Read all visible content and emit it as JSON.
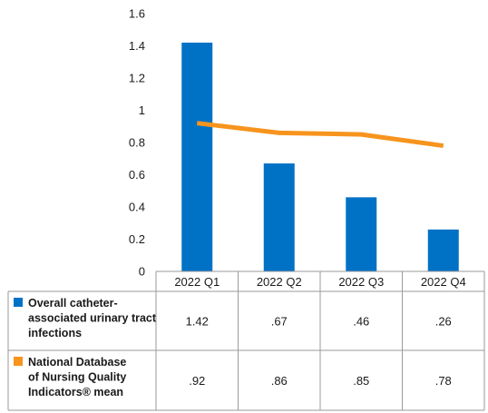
{
  "chart_data": {
    "type": "bar",
    "categories": [
      "2022 Q1",
      "2022 Q2",
      "2022 Q3",
      "2022 Q4"
    ],
    "ylim": [
      0,
      1.6
    ],
    "yticks": [
      "0",
      "0.2",
      "0.4",
      "0.6",
      "0.8",
      "1",
      "1.2",
      "1.4",
      "1.6"
    ],
    "ytick_values": [
      0,
      0.2,
      0.4,
      0.6,
      0.8,
      1,
      1.2,
      1.4,
      1.6
    ],
    "grid": false,
    "legend_placement": "data-table-left",
    "series": [
      {
        "name": "Overall catheter-associated urinary tract infections",
        "name_lines": [
          "Overall catheter-",
          "associated urinary tract",
          "infections"
        ],
        "type": "bar",
        "color": "#0072c6",
        "values": [
          1.42,
          0.67,
          0.46,
          0.26
        ],
        "table_labels": [
          "1.42",
          ".67",
          ".46",
          ".26"
        ]
      },
      {
        "name": "National Database of Nursing Quality Indicators® mean",
        "name_lines": [
          "National Database",
          "of Nursing Quality",
          "Indicators® mean"
        ],
        "type": "line",
        "color": "#f7941d",
        "values": [
          0.92,
          0.86,
          0.85,
          0.78
        ],
        "table_labels": [
          ".92",
          ".86",
          ".85",
          ".78"
        ]
      }
    ]
  }
}
